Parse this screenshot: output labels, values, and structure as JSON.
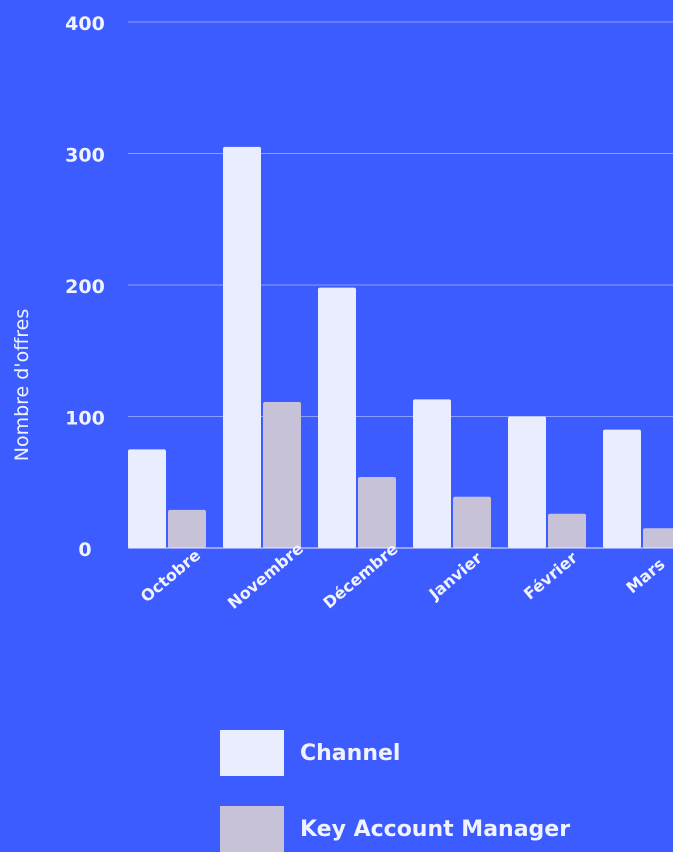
{
  "chart_data": {
    "type": "bar",
    "categories": [
      "Octobre",
      "Novembre",
      "Décembre",
      "Janvier",
      "Février",
      "Mars"
    ],
    "series": [
      {
        "name": "Channel",
        "values": [
          75,
          305,
          198,
          113,
          100,
          90
        ],
        "color": "#eaedfd"
      },
      {
        "name": "Key Account Manager",
        "values": [
          29,
          111,
          54,
          39,
          26,
          15
        ],
        "color": "#c8c2d8"
      }
    ],
    "ylabel": "Nombre d'offres",
    "xlabel": "",
    "ylim": [
      0,
      400
    ],
    "yticks": [
      "0",
      "100",
      "200",
      "300",
      "400"
    ],
    "grid": true,
    "legend_position": "bottom",
    "background_color": "#3d5cff",
    "gridline_color": "#8aa0ff"
  }
}
